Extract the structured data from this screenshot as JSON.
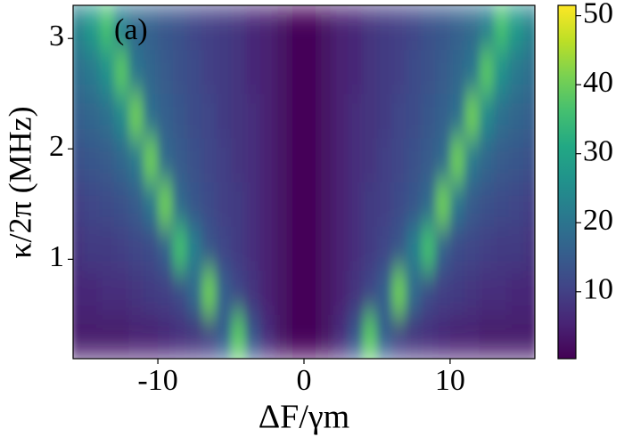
{
  "chart_data": {
    "type": "heatmap",
    "annotation": "(a)",
    "annotation_color": "#cc1111",
    "xlabel": "ΔF/γm",
    "ylabel": "κ/2π (MHz)",
    "colormap": "viridis",
    "x": [
      -15.5,
      -14.5,
      -13.5,
      -12.5,
      -11.5,
      -10.5,
      -9.5,
      -8.5,
      -7.5,
      -6.5,
      -5.5,
      -4.5,
      -3.5,
      -2.5,
      -1.5,
      -0.5,
      0.5,
      1.5,
      2.5,
      3.5,
      4.5,
      5.5,
      6.5,
      7.5,
      8.5,
      9.5,
      10.5,
      11.5,
      12.5,
      13.5,
      14.5,
      15.5
    ],
    "y": [
      0.3,
      0.7,
      1.1,
      1.5,
      1.9,
      2.3,
      2.7,
      3.1
    ],
    "z": [
      [
        4,
        4,
        4,
        4,
        5,
        5,
        6,
        7,
        8,
        10,
        16,
        38,
        14,
        7,
        3,
        1,
        1,
        3,
        7,
        14,
        38,
        16,
        10,
        8,
        7,
        6,
        5,
        5,
        4,
        4,
        4,
        4
      ],
      [
        6,
        6,
        7,
        7,
        8,
        9,
        10,
        12,
        18,
        40,
        16,
        11,
        8,
        5,
        3,
        1,
        1,
        3,
        5,
        8,
        11,
        16,
        40,
        18,
        12,
        10,
        9,
        8,
        7,
        7,
        6,
        6
      ],
      [
        8,
        9,
        9,
        10,
        11,
        12,
        16,
        36,
        22,
        14,
        11,
        9,
        7,
        5,
        3,
        1,
        1,
        3,
        5,
        7,
        9,
        11,
        14,
        22,
        36,
        16,
        12,
        11,
        10,
        9,
        9,
        8
      ],
      [
        10,
        11,
        12,
        13,
        15,
        20,
        40,
        18,
        14,
        12,
        10,
        9,
        7,
        5,
        3,
        1,
        1,
        3,
        5,
        7,
        9,
        10,
        12,
        14,
        18,
        40,
        20,
        15,
        13,
        12,
        11,
        10
      ],
      [
        13,
        14,
        15,
        17,
        21,
        40,
        18,
        15,
        13,
        11,
        10,
        8,
        7,
        5,
        3,
        1,
        1,
        3,
        5,
        7,
        8,
        10,
        11,
        13,
        15,
        18,
        40,
        21,
        17,
        15,
        14,
        13
      ],
      [
        16,
        17,
        19,
        24,
        40,
        19,
        16,
        14,
        12,
        11,
        9,
        8,
        7,
        5,
        3,
        1,
        1,
        3,
        5,
        7,
        8,
        9,
        11,
        12,
        14,
        16,
        19,
        40,
        24,
        19,
        17,
        16
      ],
      [
        19,
        21,
        26,
        38,
        20,
        17,
        15,
        13,
        12,
        10,
        9,
        8,
        6,
        5,
        3,
        1,
        1,
        3,
        5,
        6,
        8,
        9,
        10,
        12,
        13,
        15,
        17,
        20,
        38,
        26,
        21,
        19
      ],
      [
        23,
        28,
        36,
        22,
        18,
        16,
        14,
        13,
        11,
        10,
        9,
        8,
        6,
        5,
        3,
        1,
        1,
        3,
        5,
        6,
        8,
        9,
        10,
        11,
        13,
        14,
        16,
        18,
        22,
        36,
        28,
        23
      ]
    ],
    "xlim": [
      -15.8,
      15.8
    ],
    "ylim": [
      0.1,
      3.3
    ],
    "zlim": [
      0.3,
      51.5
    ],
    "xticks": [
      -10,
      0,
      10
    ],
    "yticks": [
      1,
      2,
      3
    ],
    "zticks": [
      10,
      20,
      30,
      40,
      50
    ]
  }
}
